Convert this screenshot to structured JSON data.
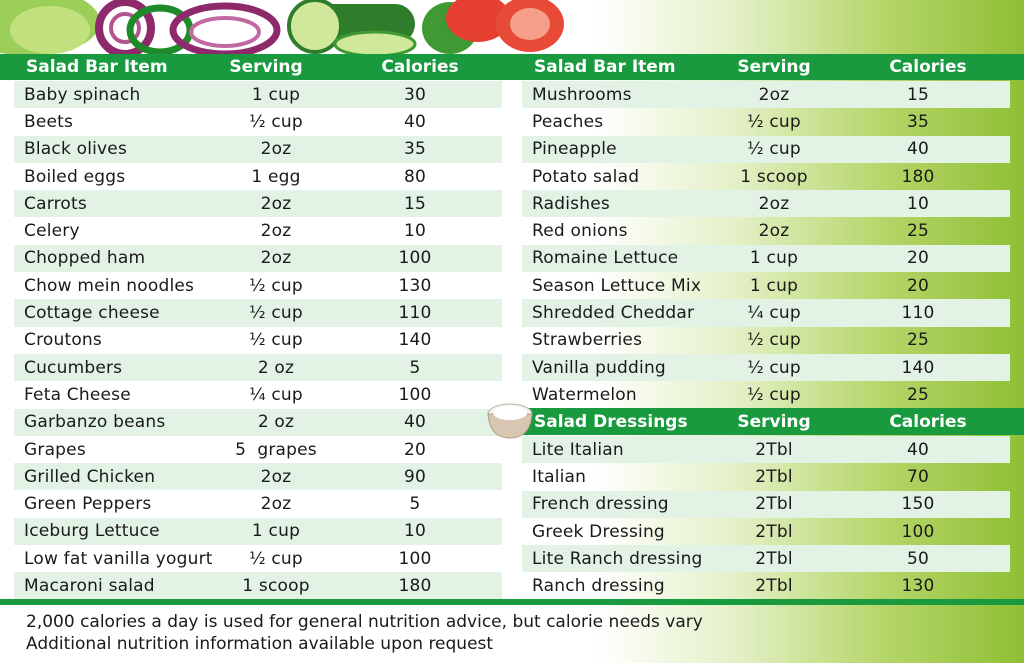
{
  "left_table": {
    "headers": {
      "item": "Salad Bar Item",
      "serving": "Serving",
      "calories": "Calories"
    },
    "rows": [
      {
        "item": "Baby spinach",
        "serving": "1 cup",
        "calories": "30"
      },
      {
        "item": "Beets",
        "serving": "½ cup",
        "calories": "40"
      },
      {
        "item": "Black olives",
        "serving": "2oz",
        "calories": "35"
      },
      {
        "item": "Boiled eggs",
        "serving": "1 egg",
        "calories": "80"
      },
      {
        "item": "Carrots",
        "serving": "2oz",
        "calories": "15"
      },
      {
        "item": "Celery",
        "serving": "2oz",
        "calories": "10"
      },
      {
        "item": "Chopped ham",
        "serving": "2oz",
        "calories": "100"
      },
      {
        "item": "Chow mein noodles",
        "serving": "½ cup",
        "calories": "130"
      },
      {
        "item": "Cottage cheese",
        "serving": "½ cup",
        "calories": "110"
      },
      {
        "item": "Croutons",
        "serving": "½ cup",
        "calories": "140"
      },
      {
        "item": "Cucumbers",
        "serving": "2 oz",
        "calories": "5"
      },
      {
        "item": "Feta Cheese",
        "serving": "¼ cup",
        "calories": "100"
      },
      {
        "item": "Garbanzo beans",
        "serving": "2 oz",
        "calories": "40"
      },
      {
        "item": "Grapes",
        "serving": "5  grapes",
        "calories": "20"
      },
      {
        "item": "Grilled Chicken",
        "serving": "2oz",
        "calories": "90"
      },
      {
        "item": "Green Peppers",
        "serving": "2oz",
        "calories": "5"
      },
      {
        "item": "Iceburg Lettuce",
        "serving": "1 cup",
        "calories": "10"
      },
      {
        "item": "Low fat vanilla yogurt",
        "serving": "½ cup",
        "calories": "100"
      },
      {
        "item": "Macaroni salad",
        "serving": "1 scoop",
        "calories": "180"
      }
    ]
  },
  "right_table": {
    "headers": {
      "item": "Salad Bar Item",
      "serving": "Serving",
      "calories": "Calories"
    },
    "rows": [
      {
        "item": "Mushrooms",
        "serving": "2oz",
        "calories": "15"
      },
      {
        "item": "Peaches",
        "serving": "½ cup",
        "calories": "35"
      },
      {
        "item": "Pineapple",
        "serving": "½ cup",
        "calories": "40"
      },
      {
        "item": "Potato salad",
        "serving": "1 scoop",
        "calories": "180"
      },
      {
        "item": "Radishes",
        "serving": "2oz",
        "calories": "10"
      },
      {
        "item": "Red onions",
        "serving": "2oz",
        "calories": "25"
      },
      {
        "item": "Romaine Lettuce",
        "serving": "1 cup",
        "calories": "20"
      },
      {
        "item": "Season Lettuce Mix",
        "serving": "1 cup",
        "calories": "20"
      },
      {
        "item": "Shredded Cheddar",
        "serving": "¼ cup",
        "calories": "110"
      },
      {
        "item": "Strawberries",
        "serving": "½ cup",
        "calories": "25"
      },
      {
        "item": "Vanilla pudding",
        "serving": "½ cup",
        "calories": "140"
      },
      {
        "item": "Watermelon",
        "serving": "½ cup",
        "calories": "25"
      }
    ]
  },
  "dressings_table": {
    "headers": {
      "item": "Salad Dressings",
      "serving": "Serving",
      "calories": "Calories"
    },
    "rows": [
      {
        "item": "Lite Italian",
        "serving": "2Tbl",
        "calories": "40"
      },
      {
        "item": "Italian",
        "serving": "2Tbl",
        "calories": "70"
      },
      {
        "item": "French dressing",
        "serving": "2Tbl",
        "calories": "150"
      },
      {
        "item": "Greek Dressing",
        "serving": "2Tbl",
        "calories": "100"
      },
      {
        "item": "Lite Ranch dressing",
        "serving": "2Tbl",
        "calories": "50"
      },
      {
        "item": "Ranch dressing",
        "serving": "2Tbl",
        "calories": "130"
      }
    ]
  },
  "footer": {
    "line1": "2,000 calories a day is used for general nutrition advice, but calorie needs vary",
    "line2": "Additional nutrition information available upon request"
  },
  "colors": {
    "header_green": "#1a9a3f",
    "row_tint": "#e2f2e4",
    "gradient_green": "#8fbf35"
  },
  "icons": [
    "vegetable-banner-illustration",
    "dressing-bowl-icon"
  ]
}
